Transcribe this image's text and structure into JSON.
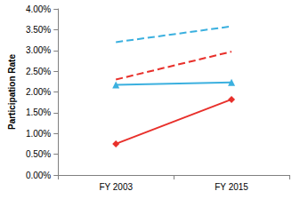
{
  "chart_data": {
    "type": "line",
    "y_label": "Participation Rate",
    "categories": [
      "FY 2003",
      "FY 2015"
    ],
    "series": [
      {
        "color": "#3bb0df",
        "values": [
          3.2,
          3.58
        ],
        "marker": "none",
        "line_style": "dashed"
      },
      {
        "color": "#e8302b",
        "values": [
          2.3,
          2.97
        ],
        "marker": "none",
        "line_style": "dashed"
      },
      {
        "color": "#3bb0df",
        "values": [
          2.17,
          2.23
        ],
        "marker": "triangle",
        "line_style": "solid"
      },
      {
        "color": "#e8302b",
        "values": [
          0.75,
          1.82
        ],
        "marker": "diamond",
        "line_style": "solid"
      }
    ],
    "ylim": [
      0,
      4
    ],
    "yticks": [
      {
        "value": 0,
        "label": "0.00%"
      },
      {
        "value": 0.5,
        "label": "0.50%"
      },
      {
        "value": 1,
        "label": "1.00%"
      },
      {
        "value": 1.5,
        "label": "1.50%"
      },
      {
        "value": 2,
        "label": "2.00%"
      },
      {
        "value": 2.5,
        "label": "2.50%"
      },
      {
        "value": 3,
        "label": "3.00%"
      },
      {
        "value": 3.5,
        "label": "3.50%"
      },
      {
        "value": 4,
        "label": "4.00%"
      }
    ],
    "grid": false
  }
}
